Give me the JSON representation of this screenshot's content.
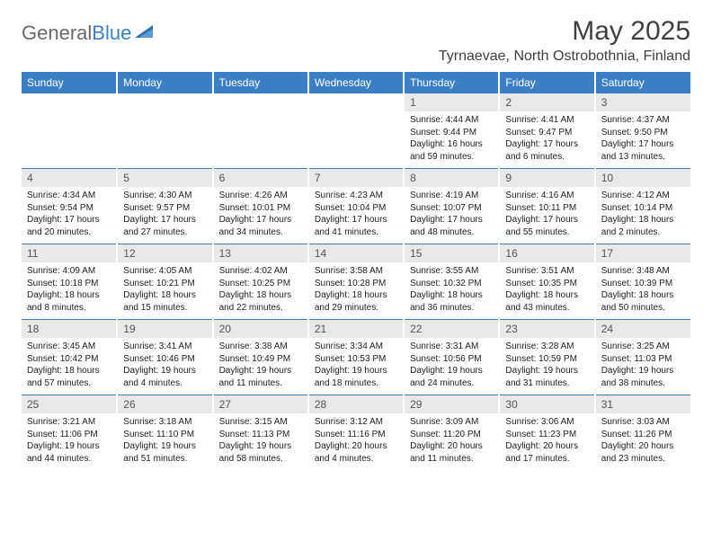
{
  "logo": {
    "text1": "General",
    "text2": "Blue"
  },
  "title": "May 2025",
  "location": "Tyrnaevae, North Ostrobothnia, Finland",
  "colors": {
    "header_bg": "#3b7fc4",
    "header_text": "#ffffff",
    "daynum_bg": "#e9e9e9",
    "border": "#3b7fc4",
    "logo_gray": "#6a6a6a",
    "logo_blue": "#3b7fc4"
  },
  "weekdays": [
    "Sunday",
    "Monday",
    "Tuesday",
    "Wednesday",
    "Thursday",
    "Friday",
    "Saturday"
  ],
  "weeks": [
    [
      {
        "n": "",
        "sr": "",
        "ss": "",
        "dl": ""
      },
      {
        "n": "",
        "sr": "",
        "ss": "",
        "dl": ""
      },
      {
        "n": "",
        "sr": "",
        "ss": "",
        "dl": ""
      },
      {
        "n": "",
        "sr": "",
        "ss": "",
        "dl": ""
      },
      {
        "n": "1",
        "sr": "Sunrise: 4:44 AM",
        "ss": "Sunset: 9:44 PM",
        "dl": "Daylight: 16 hours and 59 minutes."
      },
      {
        "n": "2",
        "sr": "Sunrise: 4:41 AM",
        "ss": "Sunset: 9:47 PM",
        "dl": "Daylight: 17 hours and 6 minutes."
      },
      {
        "n": "3",
        "sr": "Sunrise: 4:37 AM",
        "ss": "Sunset: 9:50 PM",
        "dl": "Daylight: 17 hours and 13 minutes."
      }
    ],
    [
      {
        "n": "4",
        "sr": "Sunrise: 4:34 AM",
        "ss": "Sunset: 9:54 PM",
        "dl": "Daylight: 17 hours and 20 minutes."
      },
      {
        "n": "5",
        "sr": "Sunrise: 4:30 AM",
        "ss": "Sunset: 9:57 PM",
        "dl": "Daylight: 17 hours and 27 minutes."
      },
      {
        "n": "6",
        "sr": "Sunrise: 4:26 AM",
        "ss": "Sunset: 10:01 PM",
        "dl": "Daylight: 17 hours and 34 minutes."
      },
      {
        "n": "7",
        "sr": "Sunrise: 4:23 AM",
        "ss": "Sunset: 10:04 PM",
        "dl": "Daylight: 17 hours and 41 minutes."
      },
      {
        "n": "8",
        "sr": "Sunrise: 4:19 AM",
        "ss": "Sunset: 10:07 PM",
        "dl": "Daylight: 17 hours and 48 minutes."
      },
      {
        "n": "9",
        "sr": "Sunrise: 4:16 AM",
        "ss": "Sunset: 10:11 PM",
        "dl": "Daylight: 17 hours and 55 minutes."
      },
      {
        "n": "10",
        "sr": "Sunrise: 4:12 AM",
        "ss": "Sunset: 10:14 PM",
        "dl": "Daylight: 18 hours and 2 minutes."
      }
    ],
    [
      {
        "n": "11",
        "sr": "Sunrise: 4:09 AM",
        "ss": "Sunset: 10:18 PM",
        "dl": "Daylight: 18 hours and 8 minutes."
      },
      {
        "n": "12",
        "sr": "Sunrise: 4:05 AM",
        "ss": "Sunset: 10:21 PM",
        "dl": "Daylight: 18 hours and 15 minutes."
      },
      {
        "n": "13",
        "sr": "Sunrise: 4:02 AM",
        "ss": "Sunset: 10:25 PM",
        "dl": "Daylight: 18 hours and 22 minutes."
      },
      {
        "n": "14",
        "sr": "Sunrise: 3:58 AM",
        "ss": "Sunset: 10:28 PM",
        "dl": "Daylight: 18 hours and 29 minutes."
      },
      {
        "n": "15",
        "sr": "Sunrise: 3:55 AM",
        "ss": "Sunset: 10:32 PM",
        "dl": "Daylight: 18 hours and 36 minutes."
      },
      {
        "n": "16",
        "sr": "Sunrise: 3:51 AM",
        "ss": "Sunset: 10:35 PM",
        "dl": "Daylight: 18 hours and 43 minutes."
      },
      {
        "n": "17",
        "sr": "Sunrise: 3:48 AM",
        "ss": "Sunset: 10:39 PM",
        "dl": "Daylight: 18 hours and 50 minutes."
      }
    ],
    [
      {
        "n": "18",
        "sr": "Sunrise: 3:45 AM",
        "ss": "Sunset: 10:42 PM",
        "dl": "Daylight: 18 hours and 57 minutes."
      },
      {
        "n": "19",
        "sr": "Sunrise: 3:41 AM",
        "ss": "Sunset: 10:46 PM",
        "dl": "Daylight: 19 hours and 4 minutes."
      },
      {
        "n": "20",
        "sr": "Sunrise: 3:38 AM",
        "ss": "Sunset: 10:49 PM",
        "dl": "Daylight: 19 hours and 11 minutes."
      },
      {
        "n": "21",
        "sr": "Sunrise: 3:34 AM",
        "ss": "Sunset: 10:53 PM",
        "dl": "Daylight: 19 hours and 18 minutes."
      },
      {
        "n": "22",
        "sr": "Sunrise: 3:31 AM",
        "ss": "Sunset: 10:56 PM",
        "dl": "Daylight: 19 hours and 24 minutes."
      },
      {
        "n": "23",
        "sr": "Sunrise: 3:28 AM",
        "ss": "Sunset: 10:59 PM",
        "dl": "Daylight: 19 hours and 31 minutes."
      },
      {
        "n": "24",
        "sr": "Sunrise: 3:25 AM",
        "ss": "Sunset: 11:03 PM",
        "dl": "Daylight: 19 hours and 38 minutes."
      }
    ],
    [
      {
        "n": "25",
        "sr": "Sunrise: 3:21 AM",
        "ss": "Sunset: 11:06 PM",
        "dl": "Daylight: 19 hours and 44 minutes."
      },
      {
        "n": "26",
        "sr": "Sunrise: 3:18 AM",
        "ss": "Sunset: 11:10 PM",
        "dl": "Daylight: 19 hours and 51 minutes."
      },
      {
        "n": "27",
        "sr": "Sunrise: 3:15 AM",
        "ss": "Sunset: 11:13 PM",
        "dl": "Daylight: 19 hours and 58 minutes."
      },
      {
        "n": "28",
        "sr": "Sunrise: 3:12 AM",
        "ss": "Sunset: 11:16 PM",
        "dl": "Daylight: 20 hours and 4 minutes."
      },
      {
        "n": "29",
        "sr": "Sunrise: 3:09 AM",
        "ss": "Sunset: 11:20 PM",
        "dl": "Daylight: 20 hours and 11 minutes."
      },
      {
        "n": "30",
        "sr": "Sunrise: 3:06 AM",
        "ss": "Sunset: 11:23 PM",
        "dl": "Daylight: 20 hours and 17 minutes."
      },
      {
        "n": "31",
        "sr": "Sunrise: 3:03 AM",
        "ss": "Sunset: 11:26 PM",
        "dl": "Daylight: 20 hours and 23 minutes."
      }
    ]
  ]
}
